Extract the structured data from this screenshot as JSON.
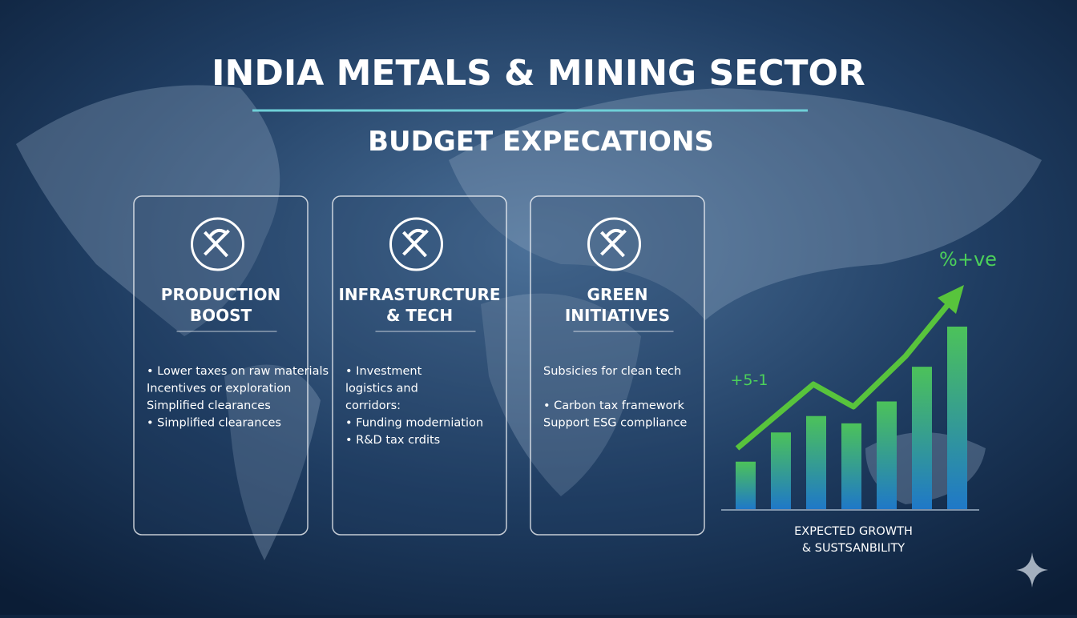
{
  "header": {
    "title": "INDIA METALS & MINING SECTOR",
    "subtitle": "BUDGET EXPECATIONS"
  },
  "cards": [
    {
      "title_lines": [
        "PRODUCTION",
        "BOOST"
      ],
      "items": [
        "• Lower taxes on raw materials",
        "Incentives or exploration",
        "Simplified clearances",
        "• Simplified clearances"
      ]
    },
    {
      "title_lines": [
        "INFRASTURCTURE",
        "& TECH"
      ],
      "items": [
        "• Investment",
        "logistics and",
        "corridors:",
        "• Funding moderniation",
        "• R&D tax crdits"
      ]
    },
    {
      "title_lines": [
        "GREEN",
        "INITIATIVES"
      ],
      "items": [
        "Subsicies for clean tech",
        "",
        "• Carbon tax framework",
        "Support ESG compliance"
      ]
    }
  ],
  "growth_chart": {
    "annotations": [
      "%+ve",
      "+5-1"
    ],
    "values": [
      26,
      42,
      51,
      47,
      59,
      78,
      100
    ],
    "caption_lines": [
      "EXPECTED GROWTH",
      "& SUSTSANBILITY"
    ]
  }
}
